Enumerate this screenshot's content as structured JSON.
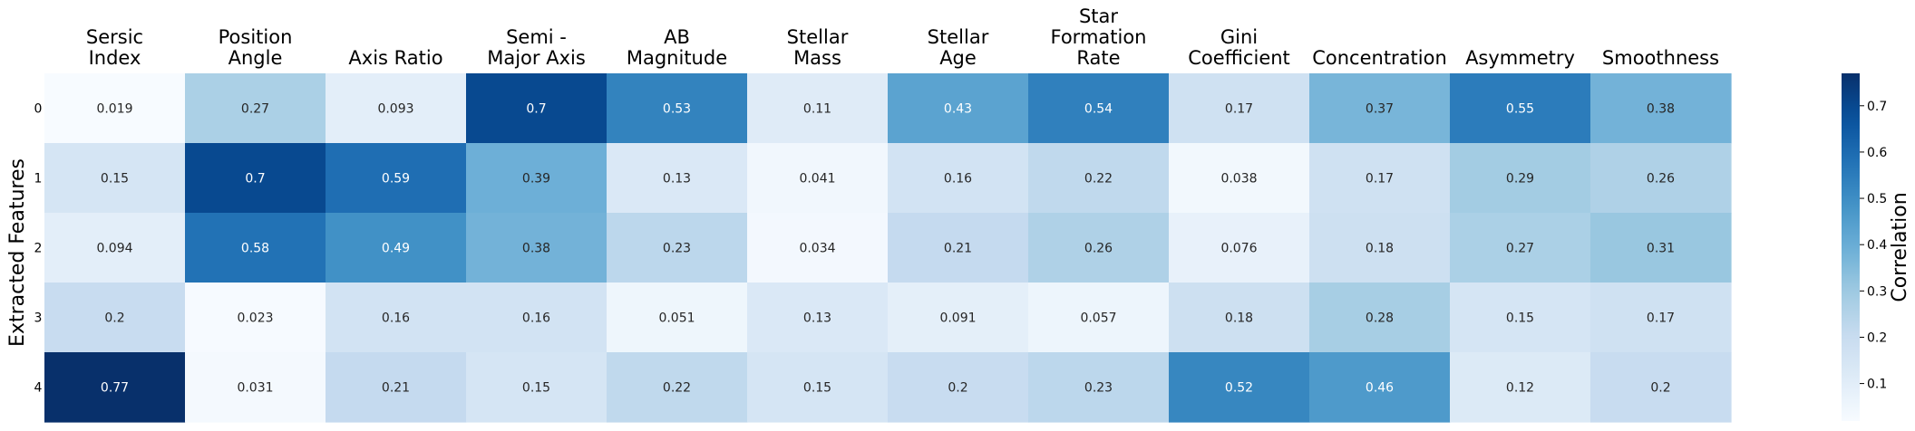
{
  "chart_data": {
    "type": "heatmap",
    "title": "",
    "xlabel": "",
    "ylabel": "Extracted Features",
    "colorbar_label": "Correlation",
    "colormap": "Blues",
    "columns": [
      {
        "lines": [
          "Sersic",
          "Index"
        ]
      },
      {
        "lines": [
          "Position",
          "Angle"
        ]
      },
      {
        "lines": [
          "Axis Ratio"
        ]
      },
      {
        "lines": [
          "Semi -",
          "Major Axis"
        ]
      },
      {
        "lines": [
          "AB",
          "Magnitude"
        ]
      },
      {
        "lines": [
          "Stellar",
          "Mass"
        ]
      },
      {
        "lines": [
          "Stellar",
          "Age"
        ]
      },
      {
        "lines": [
          "Star",
          "Formation",
          "Rate"
        ]
      },
      {
        "lines": [
          "Gini",
          "Coefficient"
        ]
      },
      {
        "lines": [
          "Concentration"
        ]
      },
      {
        "lines": [
          "Asymmetry"
        ]
      },
      {
        "lines": [
          "Smoothness"
        ]
      }
    ],
    "rows": [
      "0",
      "1",
      "2",
      "3",
      "4"
    ],
    "values": [
      [
        0.019,
        0.27,
        0.093,
        0.7,
        0.53,
        0.11,
        0.43,
        0.54,
        0.17,
        0.37,
        0.55,
        0.38
      ],
      [
        0.15,
        0.7,
        0.59,
        0.39,
        0.13,
        0.041,
        0.16,
        0.22,
        0.038,
        0.17,
        0.29,
        0.26
      ],
      [
        0.094,
        0.58,
        0.49,
        0.38,
        0.23,
        0.034,
        0.21,
        0.26,
        0.076,
        0.18,
        0.27,
        0.31
      ],
      [
        0.2,
        0.023,
        0.16,
        0.16,
        0.051,
        0.13,
        0.091,
        0.057,
        0.18,
        0.28,
        0.15,
        0.17
      ],
      [
        0.77,
        0.031,
        0.21,
        0.15,
        0.22,
        0.15,
        0.2,
        0.23,
        0.52,
        0.46,
        0.12,
        0.2
      ]
    ],
    "value_labels": [
      [
        "0.019",
        "0.27",
        "0.093",
        "0.7",
        "0.53",
        "0.11",
        "0.43",
        "0.54",
        "0.17",
        "0.37",
        "0.55",
        "0.38"
      ],
      [
        "0.15",
        "0.7",
        "0.59",
        "0.39",
        "0.13",
        "0.041",
        "0.16",
        "0.22",
        "0.038",
        "0.17",
        "0.29",
        "0.26"
      ],
      [
        "0.094",
        "0.58",
        "0.49",
        "0.38",
        "0.23",
        "0.034",
        "0.21",
        "0.26",
        "0.076",
        "0.18",
        "0.27",
        "0.31"
      ],
      [
        "0.2",
        "0.023",
        "0.16",
        "0.16",
        "0.051",
        "0.13",
        "0.091",
        "0.057",
        "0.18",
        "0.28",
        "0.15",
        "0.17"
      ],
      [
        "0.77",
        "0.031",
        "0.21",
        "0.15",
        "0.22",
        "0.15",
        "0.2",
        "0.23",
        "0.52",
        "0.46",
        "0.12",
        "0.2"
      ]
    ],
    "colorbar_range": [
      0.019,
      0.77
    ],
    "colorbar_ticks": [
      {
        "value": 0.1,
        "label": "0.1"
      },
      {
        "value": 0.2,
        "label": "0.2"
      },
      {
        "value": 0.3,
        "label": "0.3"
      },
      {
        "value": 0.4,
        "label": "0.4"
      },
      {
        "value": 0.5,
        "label": "0.5"
      },
      {
        "value": 0.6,
        "label": "0.6"
      },
      {
        "value": 0.7,
        "label": "0.7"
      }
    ]
  }
}
